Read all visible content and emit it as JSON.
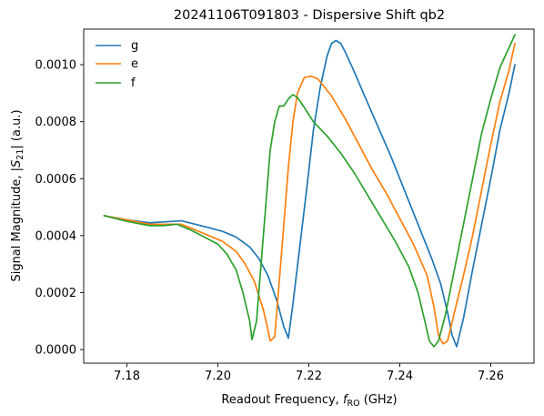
{
  "chart_data": {
    "type": "line",
    "title": "20241106T091803 - Dispersive Shift qb2",
    "xlabel": {
      "prefix": "Readout Frequency, ",
      "var": "f",
      "sub": "RO",
      "suffix": " (GHz)"
    },
    "ylabel": {
      "prefix": "Signal Magnitude, |",
      "var": "S",
      "sub": "21",
      "suffix": "| (a.u.)"
    },
    "xlim": [
      7.1705,
      7.2695
    ],
    "ylim": [
      -4.8e-05,
      0.001125
    ],
    "xticks": [
      7.18,
      7.2,
      7.22,
      7.24,
      7.26
    ],
    "xtick_labels": [
      "7.18",
      "7.20",
      "7.22",
      "7.24",
      "7.26"
    ],
    "yticks": [
      0.0,
      0.0002,
      0.0004,
      0.0006,
      0.0008,
      0.001
    ],
    "ytick_labels": [
      "0.0000",
      "0.0002",
      "0.0004",
      "0.0006",
      "0.0008",
      "0.0010"
    ],
    "grid": false,
    "legend_position": "top-left",
    "series": [
      {
        "name": "g",
        "color": "#1f77b4",
        "points": [
          [
            7.175,
            0.00047
          ],
          [
            7.18,
            0.000455
          ],
          [
            7.185,
            0.000445
          ],
          [
            7.188,
            0.000448
          ],
          [
            7.192,
            0.000452
          ],
          [
            7.195,
            0.00044
          ],
          [
            7.198,
            0.000428
          ],
          [
            7.201,
            0.000415
          ],
          [
            7.204,
            0.000395
          ],
          [
            7.207,
            0.00036
          ],
          [
            7.209,
            0.00032
          ],
          [
            7.211,
            0.00026
          ],
          [
            7.213,
            0.00017
          ],
          [
            7.2145,
            8e-05
          ],
          [
            7.2155,
            4e-05
          ],
          [
            7.2165,
            0.00016
          ],
          [
            7.218,
            0.00036
          ],
          [
            7.2195,
            0.00056
          ],
          [
            7.221,
            0.00077
          ],
          [
            7.2225,
            0.00092
          ],
          [
            7.224,
            0.00103
          ],
          [
            7.225,
            0.001075
          ],
          [
            7.226,
            0.001085
          ],
          [
            7.227,
            0.001075
          ],
          [
            7.228,
            0.001045
          ],
          [
            7.23,
            0.000975
          ],
          [
            7.232,
            0.0009
          ],
          [
            7.235,
            0.00079
          ],
          [
            7.238,
            0.00068
          ],
          [
            7.241,
            0.00056
          ],
          [
            7.244,
            0.00044
          ],
          [
            7.247,
            0.00032
          ],
          [
            7.249,
            0.00023
          ],
          [
            7.2505,
            0.00013
          ],
          [
            7.2515,
            5e-05
          ],
          [
            7.2525,
            1e-05
          ],
          [
            7.254,
            0.00011
          ],
          [
            7.256,
            0.00028
          ],
          [
            7.258,
            0.00044
          ],
          [
            7.26,
            0.0006
          ],
          [
            7.262,
            0.00077
          ],
          [
            7.264,
            0.0009
          ],
          [
            7.2653,
            0.001
          ]
        ]
      },
      {
        "name": "e",
        "color": "#ff7f0e",
        "points": [
          [
            7.175,
            0.00047
          ],
          [
            7.18,
            0.000455
          ],
          [
            7.185,
            0.00044
          ],
          [
            7.188,
            0.00044
          ],
          [
            7.192,
            0.00044
          ],
          [
            7.195,
            0.00042
          ],
          [
            7.198,
            0.0004
          ],
          [
            7.201,
            0.00038
          ],
          [
            7.204,
            0.000345
          ],
          [
            7.206,
            0.0003
          ],
          [
            7.208,
            0.00024
          ],
          [
            7.21,
            0.00014
          ],
          [
            7.211,
            7e-05
          ],
          [
            7.2115,
            3e-05
          ],
          [
            7.2125,
            4.5e-05
          ],
          [
            7.2135,
            0.00024
          ],
          [
            7.2145,
            0.00044
          ],
          [
            7.2155,
            0.00064
          ],
          [
            7.2165,
            0.0008
          ],
          [
            7.2175,
            0.0009
          ],
          [
            7.219,
            0.000955
          ],
          [
            7.2205,
            0.00096
          ],
          [
            7.222,
            0.00095
          ],
          [
            7.2235,
            0.00092
          ],
          [
            7.225,
            0.00089
          ],
          [
            7.228,
            0.00081
          ],
          [
            7.231,
            0.00072
          ],
          [
            7.234,
            0.00063
          ],
          [
            7.237,
            0.00055
          ],
          [
            7.24,
            0.00046
          ],
          [
            7.243,
            0.00037
          ],
          [
            7.246,
            0.00026
          ],
          [
            7.2475,
            0.00015
          ],
          [
            7.2485,
            5e-05
          ],
          [
            7.2495,
            2e-05
          ],
          [
            7.2505,
            3e-05
          ],
          [
            7.252,
            0.00013
          ],
          [
            7.254,
            0.00026
          ],
          [
            7.256,
            0.0004
          ],
          [
            7.258,
            0.00056
          ],
          [
            7.26,
            0.00072
          ],
          [
            7.262,
            0.00087
          ],
          [
            7.264,
            0.00098
          ],
          [
            7.2653,
            0.001075
          ]
        ]
      },
      {
        "name": "f",
        "color": "#2ca02c",
        "points": [
          [
            7.175,
            0.00047
          ],
          [
            7.18,
            0.00045
          ],
          [
            7.185,
            0.000435
          ],
          [
            7.188,
            0.000435
          ],
          [
            7.191,
            0.00044
          ],
          [
            7.194,
            0.00042
          ],
          [
            7.197,
            0.000395
          ],
          [
            7.2,
            0.00037
          ],
          [
            7.202,
            0.000335
          ],
          [
            7.204,
            0.00028
          ],
          [
            7.2055,
            0.0002
          ],
          [
            7.207,
            0.0001
          ],
          [
            7.2075,
            3.5e-05
          ],
          [
            7.2085,
            0.0001
          ],
          [
            7.2095,
            0.0003
          ],
          [
            7.2105,
            0.0005
          ],
          [
            7.2115,
            0.0007
          ],
          [
            7.2125,
            0.0008
          ],
          [
            7.2135,
            0.000855
          ],
          [
            7.2145,
            0.000855
          ],
          [
            7.2155,
            0.00088
          ],
          [
            7.2165,
            0.000895
          ],
          [
            7.2175,
            0.000885
          ],
          [
            7.219,
            0.00085
          ],
          [
            7.221,
            0.0008
          ],
          [
            7.224,
            0.00075
          ],
          [
            7.227,
            0.00069
          ],
          [
            7.23,
            0.00062
          ],
          [
            7.233,
            0.00054
          ],
          [
            7.236,
            0.00046
          ],
          [
            7.239,
            0.00038
          ],
          [
            7.242,
            0.00029
          ],
          [
            7.244,
            0.0002
          ],
          [
            7.2455,
            0.0001
          ],
          [
            7.2465,
            3e-05
          ],
          [
            7.2475,
            1e-05
          ],
          [
            7.2485,
            3e-05
          ],
          [
            7.25,
            0.00012
          ],
          [
            7.252,
            0.00028
          ],
          [
            7.254,
            0.00044
          ],
          [
            7.256,
            0.0006
          ],
          [
            7.258,
            0.00076
          ],
          [
            7.26,
            0.00088
          ],
          [
            7.262,
            0.00099
          ],
          [
            7.2653,
            0.001105
          ]
        ]
      }
    ]
  }
}
